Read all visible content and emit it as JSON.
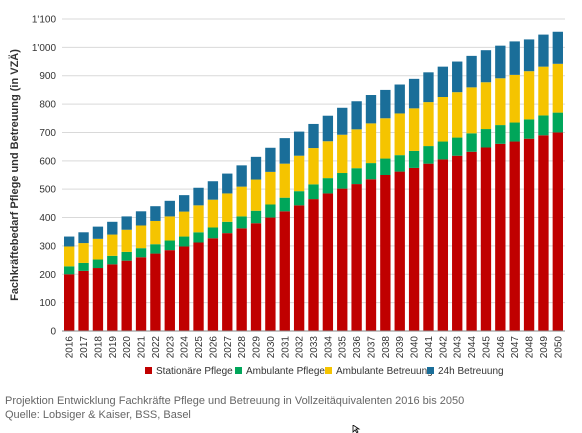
{
  "chart_data": {
    "type": "bar",
    "stacked": true,
    "categories": [
      "2016",
      "2017",
      "2018",
      "2019",
      "2020",
      "2021",
      "2022",
      "2023",
      "2024",
      "2025",
      "2026",
      "2027",
      "2028",
      "2029",
      "2030",
      "2031",
      "2032",
      "2033",
      "2034",
      "2035",
      "2036",
      "2037",
      "2038",
      "2039",
      "2040",
      "2041",
      "2042",
      "2043",
      "2044",
      "2045",
      "2046",
      "2047",
      "2048",
      "2049",
      "2050"
    ],
    "series": [
      {
        "name": "Stationäre Pflege",
        "color": "#c00000",
        "values": [
          200,
          212,
          222,
          235,
          248,
          260,
          273,
          285,
          298,
          312,
          327,
          345,
          362,
          380,
          400,
          422,
          443,
          465,
          485,
          502,
          518,
          535,
          550,
          562,
          575,
          590,
          605,
          618,
          632,
          647,
          660,
          668,
          678,
          690,
          700
        ]
      },
      {
        "name": "Ambulante Pflege",
        "color": "#00a65a",
        "values": [
          28,
          28,
          30,
          30,
          31,
          32,
          33,
          34,
          35,
          36,
          38,
          40,
          42,
          44,
          46,
          48,
          50,
          52,
          54,
          55,
          56,
          57,
          58,
          58,
          60,
          62,
          63,
          64,
          65,
          65,
          66,
          67,
          68,
          70,
          70
        ]
      },
      {
        "name": "Ambulante Betreuung",
        "color": "#f5c400",
        "values": [
          70,
          70,
          73,
          75,
          78,
          80,
          82,
          85,
          88,
          95,
          98,
          100,
          105,
          110,
          115,
          120,
          125,
          128,
          130,
          135,
          137,
          140,
          142,
          147,
          150,
          155,
          157,
          160,
          162,
          165,
          165,
          168,
          170,
          172,
          172
        ]
      },
      {
        "name": "24h Betreuung",
        "color": "#1a6e99",
        "values": [
          35,
          38,
          43,
          45,
          47,
          50,
          52,
          55,
          58,
          62,
          65,
          70,
          75,
          80,
          85,
          90,
          85,
          85,
          90,
          95,
          99,
          100,
          100,
          102,
          104,
          105,
          107,
          108,
          111,
          113,
          115,
          118,
          112,
          113,
          113
        ]
      }
    ],
    "ylabel": "Fachkräftebedarf Pflege und Betreuung (in VZÄ)",
    "yticks": [
      "0",
      "100",
      "200",
      "300",
      "400",
      "500",
      "600",
      "700",
      "800",
      "900",
      "1'000",
      "1'100"
    ],
    "ylim": [
      0,
      1100
    ],
    "grid": true,
    "legend_position": "bottom"
  },
  "caption": {
    "line1": "Projektion Entwicklung Fachkräfte Pflege und Betreuung in Vollzeitäquivalenten 2016 bis 2050",
    "line2": "Quelle: Lobsiger & Kaiser, BSS, Basel"
  }
}
